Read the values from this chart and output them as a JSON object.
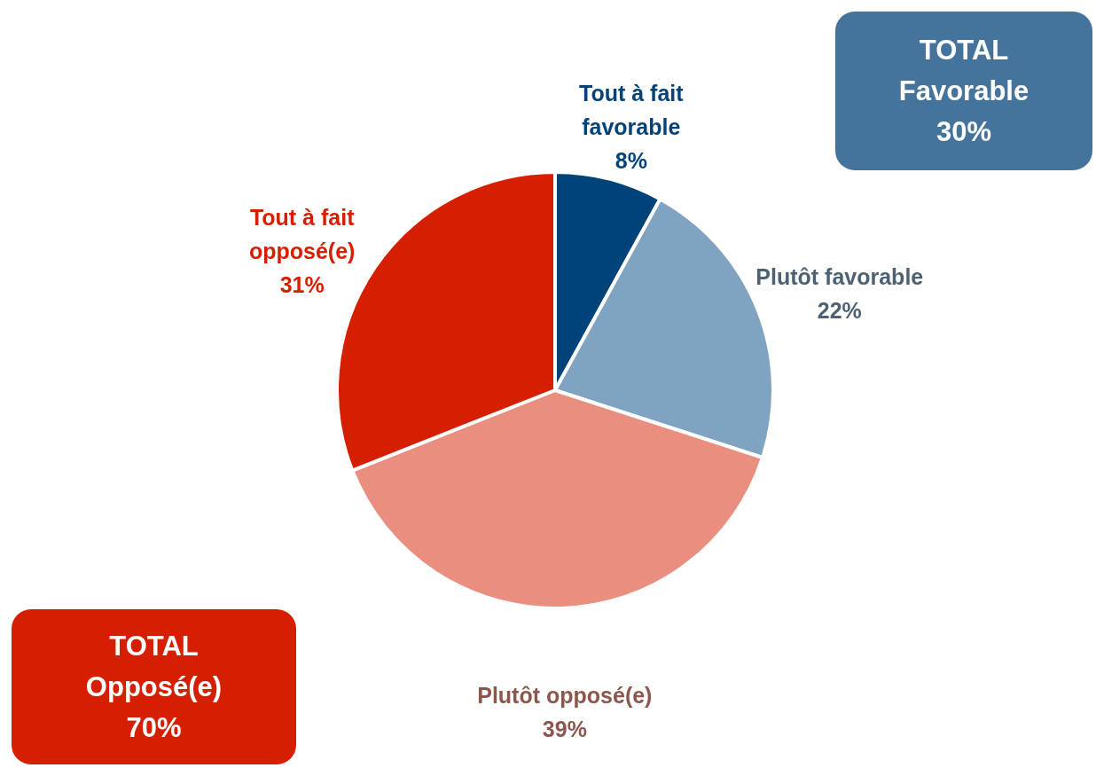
{
  "chart_data": {
    "type": "pie",
    "categories": [
      "Tout à fait favorable",
      "Plutôt favorable",
      "Plutôt opposé(e)",
      "Tout à fait opposé(e)"
    ],
    "values": [
      8,
      22,
      39,
      31
    ],
    "value_labels": [
      "8%",
      "22%",
      "39%",
      "31%"
    ],
    "colors": [
      "#004378",
      "#7fa3c0",
      "#ea8f80",
      "#d51f00"
    ],
    "annotations": [
      "TOTAL\nFavorable\n30%",
      "TOTAL\nOpposé(e)\n70%"
    ]
  }
}
